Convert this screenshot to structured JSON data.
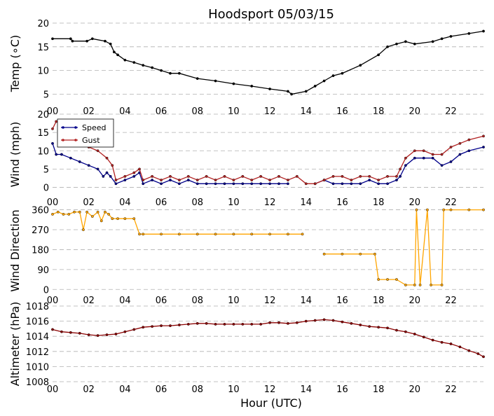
{
  "title": "Hoodsport 05/03/15",
  "xlabel": "Hour (UTC)",
  "x_ticks": [
    "00",
    "02",
    "04",
    "06",
    "08",
    "10",
    "12",
    "14",
    "16",
    "18",
    "20",
    "22"
  ],
  "chart_data": [
    {
      "type": "line",
      "ylabel": "Temp ($^\\circ$C)",
      "ylabel_display": "Temp (∘C)",
      "ylim": [
        3,
        20
      ],
      "yticks": [
        5,
        10,
        15,
        20
      ],
      "xlim": [
        0,
        23.8
      ],
      "grid": "horizontal dashed",
      "series": [
        {
          "color": "#000000",
          "x": [
            0,
            1,
            1.1,
            1.9,
            2.2,
            2.9,
            3.2,
            3.4,
            3.6,
            4,
            4.5,
            5,
            5.5,
            6,
            6.5,
            7,
            8,
            9,
            10,
            11,
            12,
            13,
            13.2,
            14,
            14.5,
            15,
            15.5,
            16,
            17,
            18,
            18.5,
            19,
            19.5,
            20,
            21,
            21.5,
            22,
            23,
            23.8
          ],
          "y": [
            16.7,
            16.7,
            16.2,
            16.2,
            16.7,
            16.2,
            15.6,
            13.9,
            13.3,
            12.2,
            11.7,
            11.1,
            10.6,
            10,
            9.4,
            9.4,
            8.3,
            7.8,
            7.2,
            6.7,
            6.1,
            5.6,
            5,
            5.6,
            6.7,
            7.8,
            8.9,
            9.4,
            11.1,
            13.3,
            15,
            15.6,
            16.1,
            15.6,
            16.1,
            16.7,
            17.2,
            17.8,
            18.3
          ]
        }
      ]
    },
    {
      "type": "line",
      "ylabel": "Wind (mph)",
      "ylim": [
        -2,
        20
      ],
      "yticks": [
        0,
        5,
        10,
        15,
        20
      ],
      "xlim": [
        0,
        23.8
      ],
      "grid": "horizontal dashed",
      "legend": "top-left",
      "series": [
        {
          "name": "Speed",
          "color": "#00008b",
          "x": [
            0,
            0.2,
            0.5,
            1,
            1.5,
            2,
            2.5,
            2.8,
            3,
            3.2,
            3.5,
            4,
            4.5,
            4.8,
            5,
            5.5,
            6,
            6.5,
            7,
            7.5,
            8,
            8.5,
            9,
            9.5,
            10,
            10.5,
            11,
            11.5,
            12,
            12.5,
            13,
            13.5,
            14,
            14.5,
            15,
            15.5,
            16,
            16.5,
            17,
            17.5,
            18,
            18.5,
            19,
            19.2,
            19.5,
            20,
            20.5,
            21,
            21.5,
            22,
            22.5,
            23,
            23.8
          ],
          "y": [
            12,
            9,
            9,
            8,
            7,
            6,
            5,
            3,
            4,
            3,
            1,
            2,
            3,
            4,
            1,
            2,
            1,
            2,
            1,
            2,
            1,
            1,
            1,
            1,
            1,
            1,
            1,
            1,
            1,
            1,
            1,
            null,
            null,
            1,
            2,
            1,
            1,
            1,
            1,
            2,
            1,
            1,
            2,
            3,
            6,
            8,
            8,
            8,
            6,
            7,
            9,
            10,
            11
          ]
        },
        {
          "name": "Gust",
          "color": "#b22222",
          "x": [
            0,
            0.2,
            0.5,
            1,
            1.5,
            2,
            2.5,
            3,
            3.3,
            3.5,
            4,
            4.5,
            4.8,
            5,
            5.5,
            6,
            6.5,
            7,
            7.5,
            8,
            8.5,
            9,
            9.5,
            10,
            10.5,
            11,
            11.5,
            12,
            12.5,
            13,
            13.5,
            14,
            14.5,
            15,
            15.5,
            16,
            16.5,
            17,
            17.5,
            18,
            18.5,
            19,
            19.2,
            19.5,
            20,
            20.5,
            21,
            21.5,
            22,
            22.5,
            23,
            23.8
          ],
          "y": [
            16,
            18,
            17,
            13,
            12,
            11,
            10,
            8,
            6,
            2,
            3,
            4,
            5,
            2,
            3,
            2,
            3,
            2,
            3,
            2,
            3,
            2,
            3,
            2,
            3,
            2,
            3,
            2,
            3,
            2,
            3,
            1,
            1,
            2,
            3,
            3,
            2,
            3,
            3,
            2,
            3,
            3,
            5,
            8,
            10,
            10,
            9,
            9,
            11,
            12,
            13,
            14
          ]
        }
      ]
    },
    {
      "type": "scatter",
      "ylabel": "Wind Direction",
      "ylim": [
        -15,
        365
      ],
      "yticks": [
        0,
        90,
        180,
        270,
        360
      ],
      "xlim": [
        0,
        23.8
      ],
      "grid": "horizontal dashed",
      "series": [
        {
          "color": "#ffa500",
          "x": [
            0,
            0.3,
            0.6,
            0.9,
            1.2,
            1.5,
            1.7,
            1.9,
            2.2,
            2.5,
            2.7,
            2.9,
            3.1,
            3.3,
            3.6,
            4,
            4.5,
            4.8,
            5,
            6,
            7,
            8,
            9,
            10,
            11,
            12,
            13,
            13.8,
            14.5,
            15,
            16,
            17,
            17.8,
            18,
            18.5,
            19,
            19.5,
            20,
            20.1,
            20.3,
            20.7,
            20.9,
            21.5,
            21.6,
            22,
            23,
            23.8
          ],
          "y": [
            340,
            350,
            340,
            340,
            350,
            350,
            270,
            350,
            330,
            350,
            310,
            350,
            340,
            320,
            320,
            320,
            320,
            250,
            250,
            250,
            250,
            250,
            250,
            250,
            250,
            250,
            250,
            250,
            null,
            160,
            160,
            160,
            160,
            45,
            45,
            45,
            20,
            20,
            360,
            20,
            360,
            20,
            20,
            360,
            360,
            360,
            360
          ]
        }
      ]
    },
    {
      "type": "line",
      "ylabel": "Altimeter (hPa)",
      "ylim": [
        1008,
        1018
      ],
      "yticks": [
        1008,
        1010,
        1012,
        1014,
        1016,
        1018
      ],
      "xlim": [
        0,
        23.8
      ],
      "grid": "horizontal dashed",
      "series": [
        {
          "color": "#8b0000",
          "x": [
            0,
            0.5,
            1,
            1.5,
            2,
            2.5,
            3,
            3.5,
            4,
            4.5,
            5,
            5.5,
            6,
            6.5,
            7,
            7.5,
            8,
            8.5,
            9,
            9.5,
            10,
            10.5,
            11,
            11.5,
            12,
            12.5,
            13,
            13.5,
            14,
            14.5,
            15,
            15.5,
            16,
            16.5,
            17,
            17.5,
            18,
            18.5,
            19,
            19.5,
            20,
            20.5,
            21,
            21.5,
            22,
            22.5,
            23,
            23.5,
            23.8
          ],
          "y": [
            1014.9,
            1014.6,
            1014.5,
            1014.4,
            1014.2,
            1014.1,
            1014.2,
            1014.3,
            1014.6,
            1014.9,
            1015.2,
            1015.3,
            1015.4,
            1015.4,
            1015.5,
            1015.6,
            1015.7,
            1015.7,
            1015.6,
            1015.6,
            1015.6,
            1015.6,
            1015.6,
            1015.6,
            1015.8,
            1015.8,
            1015.7,
            1015.8,
            1016,
            1016.1,
            1016.2,
            1016.1,
            1015.9,
            1015.7,
            1015.5,
            1015.3,
            1015.2,
            1015.1,
            1014.8,
            1014.6,
            1014.3,
            1013.9,
            1013.5,
            1013.2,
            1013,
            1012.6,
            1012.1,
            1011.7,
            1011.3
          ]
        }
      ]
    }
  ]
}
